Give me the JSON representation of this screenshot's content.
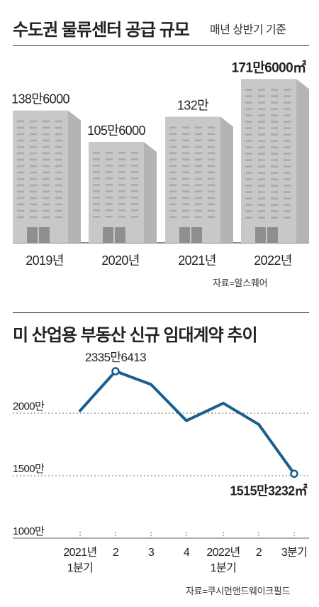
{
  "chart1": {
    "title": "수도권 물류센터 공급 규모",
    "subtitle": "매년 상반기 기준",
    "source": "자료=알스퀘어",
    "colors": {
      "front": "#c8c8c8",
      "side": "#b4b4b4",
      "window": "#a9a9a9",
      "door": "#8f8f8f",
      "base": "#666666"
    }
  },
  "chart2": {
    "title": "미 산업용 부동산 신규 임대계약 추이",
    "source": "자료=쿠시먼앤드웨이크필드",
    "colors": {
      "line": "#1a5e8f",
      "grid": "#666666"
    }
  },
  "chart_data": [
    {
      "type": "bar",
      "title": "수도권 물류센터 공급 규모",
      "subtitle": "매년 상반기 기준",
      "categories": [
        "2019년",
        "2020년",
        "2021년",
        "2022년"
      ],
      "values": [
        1386000,
        1056000,
        1320000,
        1716000
      ],
      "value_labels": [
        "138만6000",
        "105만6000",
        "132만",
        "171만6000㎡"
      ],
      "unit": "㎡",
      "ylim": [
        0,
        1800000
      ],
      "highlight_index": 3
    },
    {
      "type": "line",
      "title": "미 산업용 부동산 신규 임대계약 추이",
      "x": [
        "2021년 1분기",
        "2",
        "3",
        "4",
        "2022년 1분기",
        "2",
        "3분기"
      ],
      "x_tick_lines": [
        [
          "2021년",
          "1분기"
        ],
        [
          "2"
        ],
        [
          "3"
        ],
        [
          "4"
        ],
        [
          "2022년",
          "1분기"
        ],
        [
          "2"
        ],
        [
          "3분기"
        ]
      ],
      "values": [
        20200000,
        23356413,
        22300000,
        19400000,
        20800000,
        19100000,
        15153232
      ],
      "yticks": [
        {
          "value": 20000000,
          "label": "2000만"
        },
        {
          "value": 15000000,
          "label": "1500만"
        },
        {
          "value": 10000000,
          "label": "1000만"
        }
      ],
      "ylim": [
        10000000,
        24000000
      ],
      "annotations": [
        {
          "index": 1,
          "label": "2335만6413",
          "bold": false
        },
        {
          "index": 6,
          "label": "1515만3232㎡",
          "bold": true
        }
      ]
    }
  ]
}
